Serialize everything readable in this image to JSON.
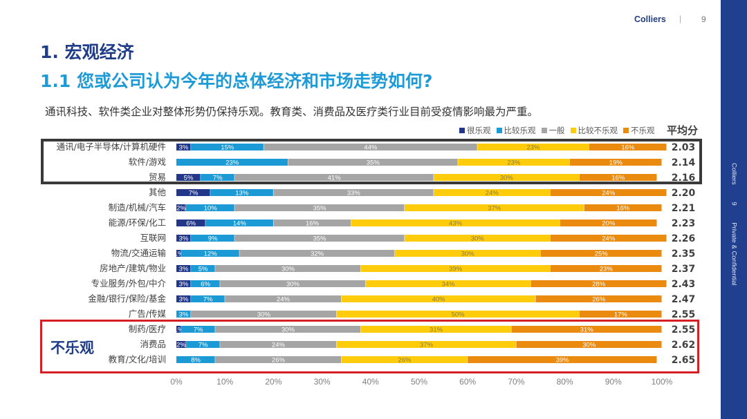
{
  "header": {
    "brand": "Colliers",
    "separator": "|",
    "page_number": "9"
  },
  "sidebar": {
    "brand": "Colliers",
    "page_number": "9",
    "confidential": "Private & Confidential"
  },
  "titles": {
    "section": "1. 宏观经济",
    "question": "1.1 您或公司认为今年的总体经济和市场走势如何?",
    "summary": "通讯科技、软件类企业对整体形势仍保持乐观。教育类、消费品及医疗类行业目前受疫情影响最为严重。"
  },
  "annotations": {
    "pessimistic_group_label": "不乐观"
  },
  "chart_data": {
    "type": "bar",
    "orientation": "horizontal",
    "stacked": true,
    "percent_stacked": true,
    "title": "",
    "xlabel": "",
    "ylabel": "",
    "xlim": [
      0,
      100
    ],
    "x_ticks": [
      "0%",
      "10%",
      "20%",
      "30%",
      "40%",
      "50%",
      "60%",
      "70%",
      "80%",
      "90%",
      "100%"
    ],
    "legend_position": "top-right",
    "avg_header": "平均分",
    "categories": [
      "通讯/电子半导体/计算机硬件",
      "软件/游戏",
      "贸易",
      "其他",
      "制造/机械/汽车",
      "能源/环保/化工",
      "互联网",
      "物流/交通运输",
      "房地产/建筑/物业",
      "专业服务/外包/中介",
      "金融/银行/保险/基金",
      "广告/传媒",
      "制药/医疗",
      "消费品",
      "教育/文化/培训"
    ],
    "series": [
      {
        "name": "很乐观",
        "color": "#22378a",
        "label_color": "#ffffff",
        "values": [
          3,
          0,
          5,
          7,
          2,
          6,
          3,
          1,
          3,
          3,
          3,
          0,
          1,
          2,
          0
        ]
      },
      {
        "name": "比较乐观",
        "color": "#1b9ad6",
        "label_color": "#ffffff",
        "values": [
          15,
          23,
          7,
          13,
          10,
          14,
          9,
          12,
          5,
          6,
          7,
          3,
          7,
          7,
          8
        ]
      },
      {
        "name": "一般",
        "color": "#a5a5a5",
        "label_color": "#ffffff",
        "values": [
          44,
          35,
          41,
          33,
          35,
          16,
          35,
          32,
          30,
          30,
          24,
          30,
          30,
          24,
          26
        ]
      },
      {
        "name": "比较不乐观",
        "color": "#fecc0a",
        "label_color": "#8a7a3a",
        "values": [
          23,
          23,
          30,
          24,
          37,
          43,
          30,
          30,
          39,
          34,
          40,
          50,
          31,
          37,
          26
        ]
      },
      {
        "name": "不乐观",
        "color": "#ea8a0f",
        "label_color": "#ffffff",
        "values": [
          16,
          19,
          16,
          24,
          16,
          20,
          24,
          25,
          23,
          28,
          26,
          17,
          31,
          30,
          39
        ]
      }
    ],
    "averages": [
      "2.03",
      "2.14",
      "2.16",
      "2.20",
      "2.21",
      "2.23",
      "2.26",
      "2.35",
      "2.37",
      "2.43",
      "2.47",
      "2.55",
      "2.55",
      "2.62",
      "2.65"
    ],
    "highlight_groups": [
      {
        "style": "dark-box",
        "meaning": "optimistic",
        "categories": [
          "通讯/电子半导体/计算机硬件",
          "软件/游戏",
          "贸易"
        ]
      },
      {
        "style": "red-box",
        "label": "不乐观",
        "categories": [
          "制药/医疗",
          "消费品",
          "教育/文化/培训"
        ]
      }
    ]
  }
}
